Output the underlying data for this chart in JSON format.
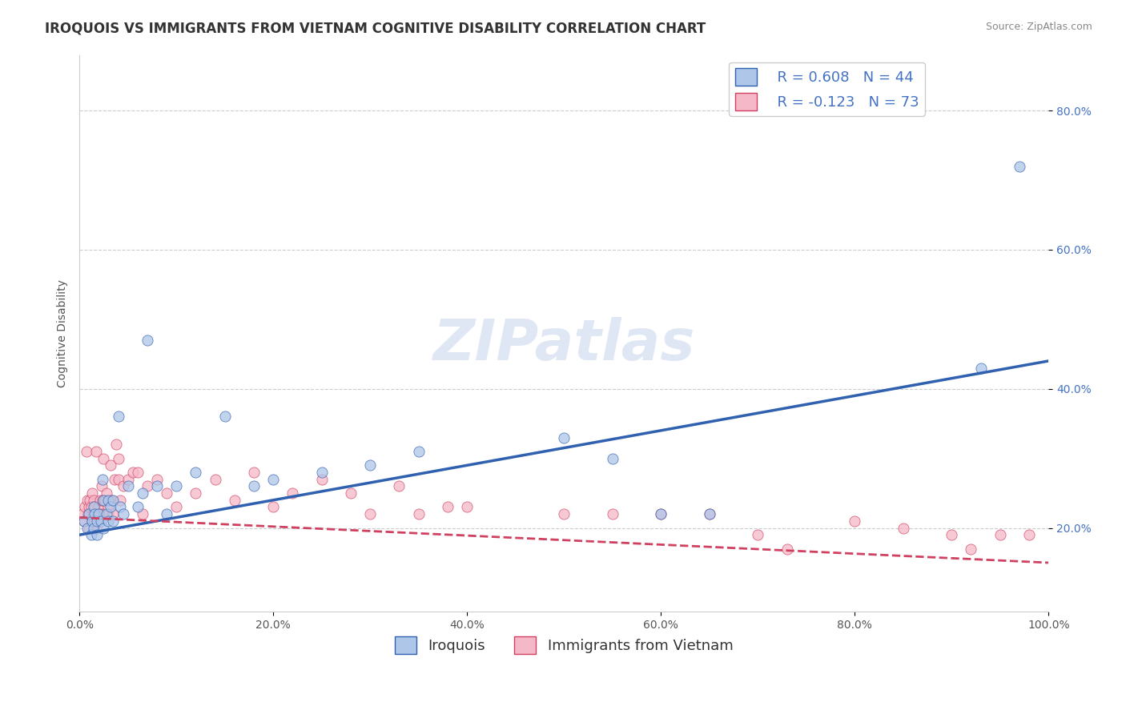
{
  "title": "IROQUOIS VS IMMIGRANTS FROM VIETNAM COGNITIVE DISABILITY CORRELATION CHART",
  "source_text": "Source: ZipAtlas.com",
  "ylabel": "Cognitive Disability",
  "watermark": "ZIPatlas",
  "legend_label_1": "Iroquois",
  "legend_label_2": "Immigrants from Vietnam",
  "r1": 0.608,
  "n1": 44,
  "r2": -0.123,
  "n2": 73,
  "color1": "#aec6e8",
  "color2": "#f5b8c8",
  "line_color1": "#3060b0",
  "line_color2": "#d04060",
  "background_color": "#ffffff",
  "grid_color": "#cccccc",
  "xmin": 0.0,
  "xmax": 1.0,
  "ymin": 0.08,
  "ymax": 0.88,
  "blue_scatter_x": [
    0.005,
    0.008,
    0.01,
    0.012,
    0.013,
    0.015,
    0.015,
    0.016,
    0.018,
    0.018,
    0.02,
    0.022,
    0.024,
    0.025,
    0.025,
    0.028,
    0.03,
    0.03,
    0.032,
    0.035,
    0.035,
    0.04,
    0.042,
    0.045,
    0.05,
    0.06,
    0.065,
    0.07,
    0.08,
    0.09,
    0.1,
    0.12,
    0.15,
    0.18,
    0.2,
    0.25,
    0.3,
    0.35,
    0.5,
    0.55,
    0.6,
    0.65,
    0.93,
    0.97
  ],
  "blue_scatter_y": [
    0.21,
    0.2,
    0.22,
    0.19,
    0.21,
    0.23,
    0.2,
    0.22,
    0.21,
    0.19,
    0.22,
    0.21,
    0.27,
    0.24,
    0.2,
    0.22,
    0.21,
    0.24,
    0.23,
    0.24,
    0.21,
    0.36,
    0.23,
    0.22,
    0.26,
    0.23,
    0.25,
    0.47,
    0.26,
    0.22,
    0.26,
    0.28,
    0.36,
    0.26,
    0.27,
    0.28,
    0.29,
    0.31,
    0.33,
    0.3,
    0.22,
    0.22,
    0.43,
    0.72
  ],
  "pink_scatter_x": [
    0.003,
    0.005,
    0.006,
    0.007,
    0.008,
    0.009,
    0.01,
    0.01,
    0.011,
    0.012,
    0.012,
    0.013,
    0.014,
    0.015,
    0.015,
    0.016,
    0.017,
    0.018,
    0.018,
    0.02,
    0.02,
    0.021,
    0.022,
    0.023,
    0.024,
    0.025,
    0.025,
    0.026,
    0.028,
    0.03,
    0.03,
    0.032,
    0.033,
    0.035,
    0.036,
    0.038,
    0.04,
    0.04,
    0.042,
    0.045,
    0.05,
    0.055,
    0.06,
    0.065,
    0.07,
    0.08,
    0.09,
    0.1,
    0.12,
    0.14,
    0.16,
    0.18,
    0.2,
    0.22,
    0.25,
    0.28,
    0.3,
    0.33,
    0.35,
    0.38,
    0.4,
    0.5,
    0.55,
    0.6,
    0.65,
    0.7,
    0.73,
    0.8,
    0.85,
    0.9,
    0.92,
    0.95,
    0.98
  ],
  "pink_scatter_y": [
    0.22,
    0.21,
    0.23,
    0.31,
    0.24,
    0.22,
    0.23,
    0.2,
    0.24,
    0.21,
    0.23,
    0.25,
    0.22,
    0.21,
    0.24,
    0.23,
    0.31,
    0.22,
    0.2,
    0.23,
    0.21,
    0.24,
    0.22,
    0.26,
    0.24,
    0.3,
    0.22,
    0.24,
    0.25,
    0.23,
    0.22,
    0.29,
    0.24,
    0.22,
    0.27,
    0.32,
    0.27,
    0.3,
    0.24,
    0.26,
    0.27,
    0.28,
    0.28,
    0.22,
    0.26,
    0.27,
    0.25,
    0.23,
    0.25,
    0.27,
    0.24,
    0.28,
    0.23,
    0.25,
    0.27,
    0.25,
    0.22,
    0.26,
    0.22,
    0.23,
    0.23,
    0.22,
    0.22,
    0.22,
    0.22,
    0.19,
    0.17,
    0.21,
    0.2,
    0.19,
    0.17,
    0.19,
    0.19
  ],
  "title_fontsize": 12,
  "axis_label_fontsize": 10,
  "tick_fontsize": 10,
  "source_fontsize": 9,
  "legend_fontsize": 13,
  "watermark_fontsize": 52,
  "watermark_color": "#ccd8ee",
  "watermark_alpha": 0.6
}
